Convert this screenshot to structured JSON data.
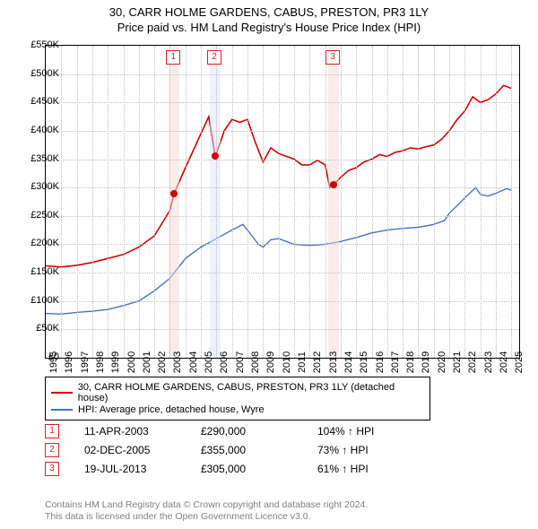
{
  "title_line1": "30, CARR HOLME GARDENS, CABUS, PRESTON, PR3 1LY",
  "title_line2": "Price paid vs. HM Land Registry's House Price Index (HPI)",
  "chart": {
    "type": "line",
    "x_min": 1995,
    "x_max": 2025.5,
    "y_min": 0,
    "y_max": 550000,
    "ytick_step": 50000,
    "ytick_prefix": "£",
    "ytick_suffix": "K",
    "xticks": [
      1995,
      1996,
      1997,
      1998,
      1999,
      2000,
      2001,
      2002,
      2003,
      2004,
      2005,
      2006,
      2007,
      2008,
      2009,
      2010,
      2011,
      2012,
      2013,
      2014,
      2015,
      2016,
      2017,
      2018,
      2019,
      2020,
      2021,
      2022,
      2023,
      2024,
      2025
    ],
    "grid_color": "#bfbfbf",
    "background_color": "#ffffff",
    "title_fontsize": 13,
    "tick_fontsize": 11,
    "series": [
      {
        "name": "property",
        "color": "#d40000",
        "width": 1.6,
        "data": [
          [
            1995,
            162000
          ],
          [
            1996,
            160000
          ],
          [
            1997,
            163000
          ],
          [
            1998,
            168000
          ],
          [
            1999,
            175000
          ],
          [
            2000,
            182000
          ],
          [
            2001,
            195000
          ],
          [
            2002,
            215000
          ],
          [
            2003,
            260000
          ],
          [
            2003.28,
            290000
          ],
          [
            2004,
            335000
          ],
          [
            2005,
            395000
          ],
          [
            2005.5,
            425000
          ],
          [
            2005.92,
            355000
          ],
          [
            2006,
            360000
          ],
          [
            2006.5,
            400000
          ],
          [
            2007,
            420000
          ],
          [
            2007.5,
            415000
          ],
          [
            2008,
            420000
          ],
          [
            2008.5,
            380000
          ],
          [
            2009,
            345000
          ],
          [
            2009.5,
            370000
          ],
          [
            2010,
            360000
          ],
          [
            2010.5,
            355000
          ],
          [
            2011,
            350000
          ],
          [
            2011.5,
            340000
          ],
          [
            2012,
            340000
          ],
          [
            2012.5,
            348000
          ],
          [
            2013,
            340000
          ],
          [
            2013.3,
            300000
          ],
          [
            2013.55,
            305000
          ],
          [
            2014,
            318000
          ],
          [
            2014.5,
            330000
          ],
          [
            2015,
            335000
          ],
          [
            2015.5,
            345000
          ],
          [
            2016,
            350000
          ],
          [
            2016.5,
            358000
          ],
          [
            2017,
            355000
          ],
          [
            2017.5,
            362000
          ],
          [
            2018,
            365000
          ],
          [
            2018.5,
            370000
          ],
          [
            2019,
            368000
          ],
          [
            2019.5,
            372000
          ],
          [
            2020,
            375000
          ],
          [
            2020.5,
            385000
          ],
          [
            2021,
            400000
          ],
          [
            2021.5,
            420000
          ],
          [
            2022,
            435000
          ],
          [
            2022.5,
            460000
          ],
          [
            2023,
            450000
          ],
          [
            2023.5,
            455000
          ],
          [
            2024,
            465000
          ],
          [
            2024.5,
            480000
          ],
          [
            2025,
            475000
          ]
        ]
      },
      {
        "name": "hpi",
        "color": "#4a72c4",
        "width": 1.4,
        "data": [
          [
            1995,
            78000
          ],
          [
            1996,
            77000
          ],
          [
            1997,
            80000
          ],
          [
            1998,
            82000
          ],
          [
            1999,
            85000
          ],
          [
            2000,
            92000
          ],
          [
            2001,
            100000
          ],
          [
            2002,
            118000
          ],
          [
            2003,
            140000
          ],
          [
            2004,
            175000
          ],
          [
            2005,
            195000
          ],
          [
            2006,
            210000
          ],
          [
            2007,
            225000
          ],
          [
            2007.7,
            235000
          ],
          [
            2008,
            225000
          ],
          [
            2008.7,
            200000
          ],
          [
            2009,
            195000
          ],
          [
            2009.5,
            208000
          ],
          [
            2010,
            210000
          ],
          [
            2010.5,
            205000
          ],
          [
            2011,
            200000
          ],
          [
            2012,
            198000
          ],
          [
            2013,
            200000
          ],
          [
            2014,
            205000
          ],
          [
            2015,
            212000
          ],
          [
            2016,
            220000
          ],
          [
            2017,
            225000
          ],
          [
            2018,
            228000
          ],
          [
            2019,
            230000
          ],
          [
            2020,
            235000
          ],
          [
            2020.7,
            242000
          ],
          [
            2021,
            255000
          ],
          [
            2021.5,
            268000
          ],
          [
            2022,
            282000
          ],
          [
            2022.7,
            300000
          ],
          [
            2023,
            288000
          ],
          [
            2023.5,
            285000
          ],
          [
            2024,
            290000
          ],
          [
            2024.7,
            298000
          ],
          [
            2025,
            295000
          ]
        ]
      }
    ],
    "bands": [
      {
        "x": 2003.28,
        "color": "#f7dada"
      },
      {
        "x": 2005.92,
        "color": "#dce5f5"
      },
      {
        "x": 2013.55,
        "color": "#f7dada"
      }
    ],
    "band_halfwidth_years": 0.35,
    "markers": [
      {
        "n": "1",
        "x": 2003.28,
        "y": 290000
      },
      {
        "n": "2",
        "x": 2005.92,
        "y": 355000
      },
      {
        "n": "3",
        "x": 2013.55,
        "y": 305000
      }
    ],
    "marker_box_color": "#e02020",
    "dot_color": "#d40000"
  },
  "legend": {
    "items": [
      {
        "color": "#d40000",
        "label": "30, CARR HOLME GARDENS, CABUS, PRESTON, PR3 1LY (detached house)"
      },
      {
        "color": "#4a72c4",
        "label": "HPI: Average price, detached house, Wyre"
      }
    ]
  },
  "events": [
    {
      "n": "1",
      "date": "11-APR-2003",
      "price": "£290,000",
      "diff": "104% ↑ HPI"
    },
    {
      "n": "2",
      "date": "02-DEC-2005",
      "price": "£355,000",
      "diff": "73% ↑ HPI"
    },
    {
      "n": "3",
      "date": "19-JUL-2013",
      "price": "£305,000",
      "diff": "61% ↑ HPI"
    }
  ],
  "footnote_line1": "Contains HM Land Registry data © Crown copyright and database right 2024.",
  "footnote_line2": "This data is licensed under the Open Government Licence v3.0.",
  "colors": {
    "footnote": "#808080",
    "border": "#000000"
  }
}
